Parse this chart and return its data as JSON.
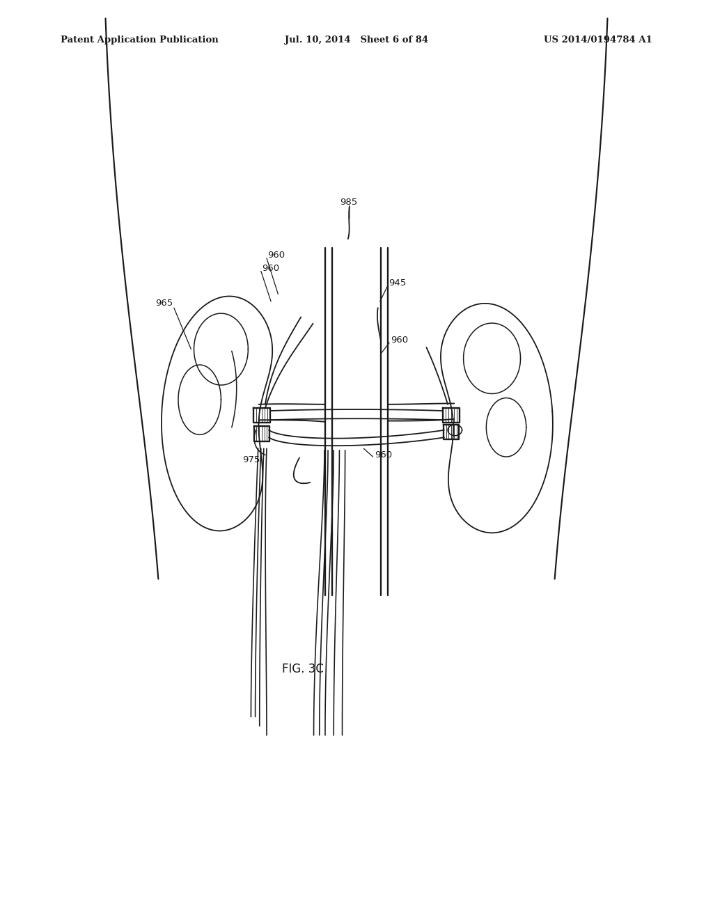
{
  "bg_color": "#ffffff",
  "line_color": "#1a1a1a",
  "header_left": "Patent Application Publication",
  "header_mid": "Jul. 10, 2014   Sheet 6 of 84",
  "header_right": "US 2014/0194784 A1",
  "fig_label": "FIG. 3C",
  "fig_label_fx": 0.425,
  "fig_label_fy": 0.728,
  "header_fontsize": 9.5,
  "label_fontsize": 9.5
}
